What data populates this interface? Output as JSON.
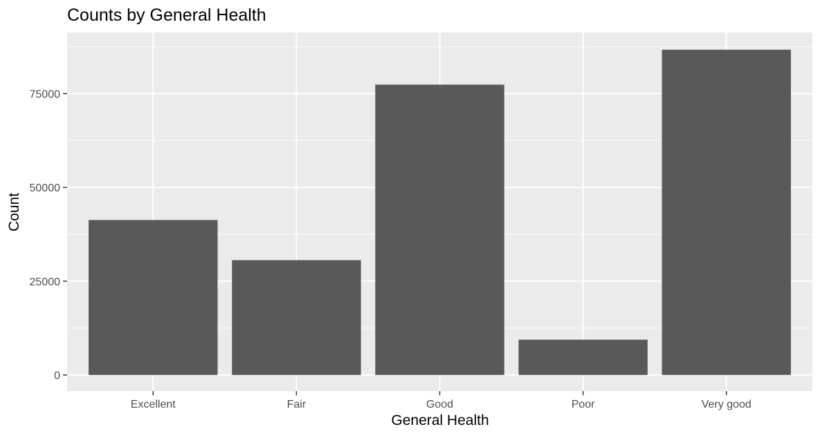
{
  "chart_data": {
    "type": "bar",
    "title": "Counts by General Health",
    "xlabel": "General Health",
    "ylabel": "Count",
    "categories": [
      "Excellent",
      "Fair",
      "Good",
      "Poor",
      "Very good"
    ],
    "values": [
      41300,
      30600,
      77400,
      9400,
      86700
    ],
    "ylim": [
      -4300,
      91300
    ],
    "yticks": [
      0,
      25000,
      50000,
      75000
    ],
    "ytick_labels": [
      "0",
      "25000",
      "50000",
      "75000"
    ],
    "grid": true,
    "colors": {
      "bar": "#595959",
      "panel_background": "#ebebeb",
      "grid": "#ffffff",
      "tick": "#333333"
    }
  }
}
